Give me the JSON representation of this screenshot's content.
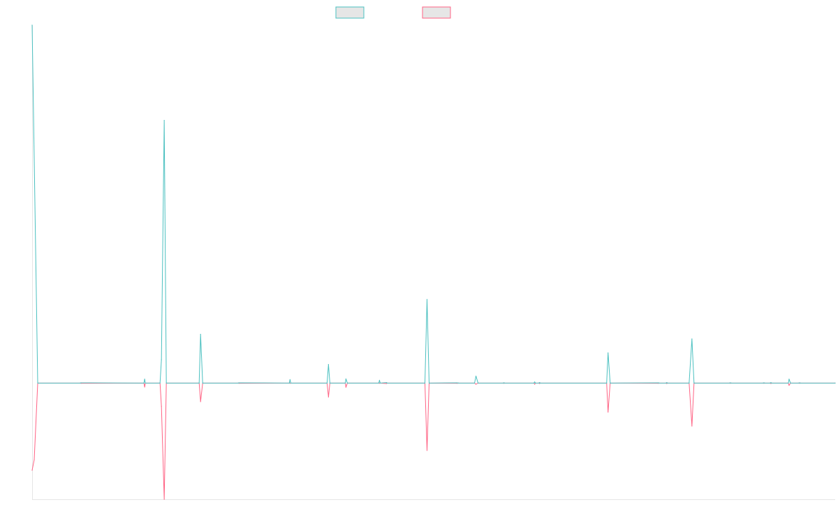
{
  "chart_data": {
    "type": "line",
    "title": "",
    "xlabel": "",
    "ylabel": "",
    "grid": false,
    "legend_position": "top",
    "x_range": [
      0,
      1149
    ],
    "ylim": [
      -500,
      1540
    ],
    "series": [
      {
        "name": "",
        "color": "#4bc0c0",
        "fill": "#e6e6e6",
        "points": [
          [
            0,
            1540
          ],
          [
            8,
            0
          ],
          [
            69,
            0
          ],
          [
            70,
            1
          ],
          [
            160,
            0
          ],
          [
            161,
            17
          ],
          [
            162,
            0
          ],
          [
            183,
            0
          ],
          [
            185,
            100
          ],
          [
            189,
            1130
          ],
          [
            192,
            0
          ],
          [
            239,
            0
          ],
          [
            241,
            210
          ],
          [
            244,
            0
          ],
          [
            295,
            0
          ],
          [
            296,
            1
          ],
          [
            368,
            0
          ],
          [
            369,
            15
          ],
          [
            370,
            0
          ],
          [
            422,
            0
          ],
          [
            424,
            80
          ],
          [
            426,
            0
          ],
          [
            448,
            0
          ],
          [
            449,
            18
          ],
          [
            451,
            0
          ],
          [
            496,
            0
          ],
          [
            497,
            12
          ],
          [
            498,
            0
          ],
          [
            507,
            2
          ],
          [
            508,
            0
          ],
          [
            562,
            0
          ],
          [
            565,
            360
          ],
          [
            568,
            0
          ],
          [
            608,
            1
          ],
          [
            610,
            0
          ],
          [
            633,
            0
          ],
          [
            635,
            30
          ],
          [
            638,
            0
          ],
          [
            674,
            0
          ],
          [
            675,
            1
          ],
          [
            676,
            0
          ],
          [
            718,
            0
          ],
          [
            719,
            5
          ],
          [
            720,
            0
          ],
          [
            725,
            0
          ],
          [
            726,
            2
          ],
          [
            727,
            0
          ],
          [
            822,
            0
          ],
          [
            824,
            130
          ],
          [
            827,
            0
          ],
          [
            896,
            1
          ],
          [
            897,
            0
          ],
          [
            907,
            0
          ],
          [
            908,
            2
          ],
          [
            909,
            0
          ],
          [
            940,
            0
          ],
          [
            944,
            190
          ],
          [
            947,
            0
          ],
          [
            998,
            0
          ],
          [
            999,
            1
          ],
          [
            1000,
            0
          ],
          [
            1046,
            0
          ],
          [
            1047,
            1
          ],
          [
            1048,
            0
          ],
          [
            1056,
            0
          ],
          [
            1057,
            2
          ],
          [
            1058,
            0
          ],
          [
            1082,
            0
          ],
          [
            1083,
            17
          ],
          [
            1085,
            0
          ],
          [
            1097,
            0
          ],
          [
            1098,
            1
          ],
          [
            1099,
            0
          ],
          [
            1149,
            0
          ]
        ]
      },
      {
        "name": "",
        "color": "#ff6384",
        "fill": "#e6e6e6",
        "points": [
          [
            0,
            -375
          ],
          [
            3,
            -330
          ],
          [
            8,
            0
          ],
          [
            69,
            0
          ],
          [
            70,
            -1
          ],
          [
            160,
            0
          ],
          [
            161,
            -17
          ],
          [
            162,
            0
          ],
          [
            183,
            0
          ],
          [
            185,
            -100
          ],
          [
            189,
            -500
          ],
          [
            192,
            0
          ],
          [
            239,
            0
          ],
          [
            241,
            -80
          ],
          [
            244,
            0
          ],
          [
            295,
            0
          ],
          [
            296,
            -1
          ],
          [
            368,
            0
          ],
          [
            369,
            -1
          ],
          [
            370,
            0
          ],
          [
            422,
            0
          ],
          [
            424,
            -60
          ],
          [
            426,
            0
          ],
          [
            448,
            0
          ],
          [
            449,
            -18
          ],
          [
            451,
            0
          ],
          [
            496,
            0
          ],
          [
            497,
            -1
          ],
          [
            498,
            0
          ],
          [
            507,
            -2
          ],
          [
            508,
            0
          ],
          [
            562,
            0
          ],
          [
            565,
            -290
          ],
          [
            568,
            0
          ],
          [
            608,
            -1
          ],
          [
            610,
            0
          ],
          [
            633,
            0
          ],
          [
            635,
            -5
          ],
          [
            638,
            0
          ],
          [
            674,
            0
          ],
          [
            675,
            -1
          ],
          [
            676,
            0
          ],
          [
            718,
            0
          ],
          [
            719,
            -5
          ],
          [
            720,
            0
          ],
          [
            725,
            0
          ],
          [
            726,
            -2
          ],
          [
            727,
            0
          ],
          [
            822,
            0
          ],
          [
            824,
            -125
          ],
          [
            827,
            0
          ],
          [
            896,
            -1
          ],
          [
            897,
            0
          ],
          [
            907,
            0
          ],
          [
            908,
            -2
          ],
          [
            909,
            0
          ],
          [
            940,
            0
          ],
          [
            944,
            -185
          ],
          [
            947,
            0
          ],
          [
            998,
            0
          ],
          [
            999,
            -1
          ],
          [
            1000,
            0
          ],
          [
            1046,
            0
          ],
          [
            1047,
            -1
          ],
          [
            1048,
            0
          ],
          [
            1056,
            0
          ],
          [
            1057,
            -2
          ],
          [
            1058,
            0
          ],
          [
            1082,
            0
          ],
          [
            1083,
            -10
          ],
          [
            1085,
            0
          ],
          [
            1097,
            0
          ],
          [
            1098,
            -1
          ],
          [
            1099,
            0
          ],
          [
            1149,
            0
          ]
        ]
      }
    ]
  }
}
